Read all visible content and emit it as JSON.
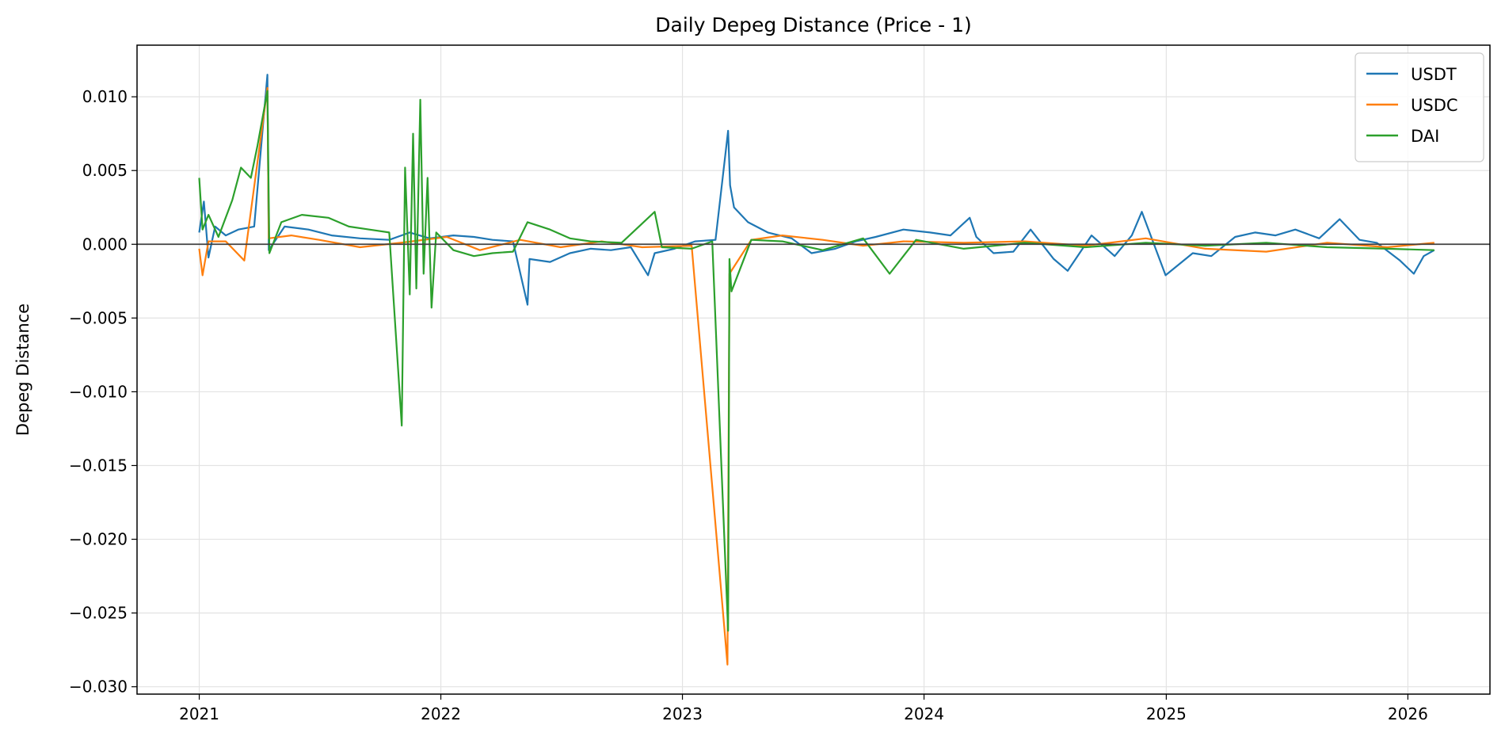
{
  "chart_data": {
    "type": "line",
    "title": "Daily Depeg Distance (Price - 1)",
    "xlabel": "",
    "ylabel": "Depeg Distance",
    "x_range": [
      "2020-09-29",
      "2026-05-05"
    ],
    "ylim": [
      -0.0305,
      0.0135
    ],
    "x_ticks": [
      {
        "date": "2021-01-01",
        "label": "2021"
      },
      {
        "date": "2022-01-01",
        "label": "2022"
      },
      {
        "date": "2023-01-01",
        "label": "2023"
      },
      {
        "date": "2024-01-01",
        "label": "2024"
      },
      {
        "date": "2025-01-01",
        "label": "2025"
      },
      {
        "date": "2026-01-01",
        "label": "2026"
      }
    ],
    "y_ticks": [
      {
        "value": 0.01,
        "label": "0.010"
      },
      {
        "value": 0.005,
        "label": "0.005"
      },
      {
        "value": 0.0,
        "label": "0.000"
      },
      {
        "value": -0.005,
        "label": "−0.005"
      },
      {
        "value": -0.01,
        "label": "−0.010"
      },
      {
        "value": -0.015,
        "label": "−0.015"
      },
      {
        "value": -0.02,
        "label": "−0.020"
      },
      {
        "value": -0.025,
        "label": "−0.025"
      },
      {
        "value": -0.03,
        "label": "−0.030"
      }
    ],
    "reference_line": {
      "y": 0,
      "color": "#404040"
    },
    "grid": true,
    "legend_position": "top-right",
    "series": [
      {
        "name": "USDT",
        "color": "#1f77b4",
        "points": [
          [
            "2021-01-01",
            0.0008
          ],
          [
            "2021-01-08",
            0.0029
          ],
          [
            "2021-01-15",
            -0.0009
          ],
          [
            "2021-01-25",
            0.0012
          ],
          [
            "2021-02-10",
            0.0006
          ],
          [
            "2021-03-01",
            0.001
          ],
          [
            "2021-03-25",
            0.0012
          ],
          [
            "2021-04-14",
            0.0115
          ],
          [
            "2021-04-16",
            -0.0004
          ],
          [
            "2021-05-10",
            0.0012
          ],
          [
            "2021-06-15",
            0.001
          ],
          [
            "2021-07-20",
            0.0006
          ],
          [
            "2021-09-01",
            0.0004
          ],
          [
            "2021-10-15",
            0.0003
          ],
          [
            "2021-11-15",
            0.0008
          ],
          [
            "2021-12-15",
            0.0004
          ],
          [
            "2022-01-20",
            0.0006
          ],
          [
            "2022-02-20",
            0.0005
          ],
          [
            "2022-03-20",
            0.0003
          ],
          [
            "2022-04-20",
            0.0002
          ],
          [
            "2022-05-12",
            -0.0041
          ],
          [
            "2022-05-15",
            -0.001
          ],
          [
            "2022-06-15",
            -0.0012
          ],
          [
            "2022-07-15",
            -0.0006
          ],
          [
            "2022-08-15",
            -0.0003
          ],
          [
            "2022-09-15",
            -0.0004
          ],
          [
            "2022-10-15",
            -0.0002
          ],
          [
            "2022-11-10",
            -0.0021
          ],
          [
            "2022-11-20",
            -0.0006
          ],
          [
            "2022-12-20",
            -0.0003
          ],
          [
            "2023-01-20",
            0.0002
          ],
          [
            "2023-02-20",
            0.0003
          ],
          [
            "2023-03-11",
            0.0077
          ],
          [
            "2023-03-14",
            0.004
          ],
          [
            "2023-03-20",
            0.0025
          ],
          [
            "2023-04-10",
            0.0015
          ],
          [
            "2023-05-10",
            0.0008
          ],
          [
            "2023-06-15",
            0.0004
          ],
          [
            "2023-07-15",
            -0.0006
          ],
          [
            "2023-08-20",
            -0.0003
          ],
          [
            "2023-09-20",
            0.0002
          ],
          [
            "2023-10-20",
            0.0005
          ],
          [
            "2023-12-01",
            0.001
          ],
          [
            "2024-01-10",
            0.0008
          ],
          [
            "2024-02-10",
            0.0006
          ],
          [
            "2024-03-10",
            0.0018
          ],
          [
            "2024-03-20",
            0.0005
          ],
          [
            "2024-04-15",
            -0.0006
          ],
          [
            "2024-05-15",
            -0.0005
          ],
          [
            "2024-06-10",
            0.001
          ],
          [
            "2024-07-15",
            -0.001
          ],
          [
            "2024-08-05",
            -0.0018
          ],
          [
            "2024-09-10",
            0.0006
          ],
          [
            "2024-10-15",
            -0.0008
          ],
          [
            "2024-11-10",
            0.0006
          ],
          [
            "2024-11-25",
            0.0022
          ],
          [
            "2024-12-10",
            0.0004
          ],
          [
            "2024-12-31",
            -0.0021
          ],
          [
            "2025-02-10",
            -0.0006
          ],
          [
            "2025-03-10",
            -0.0008
          ],
          [
            "2025-04-15",
            0.0005
          ],
          [
            "2025-05-15",
            0.0008
          ],
          [
            "2025-06-15",
            0.0006
          ],
          [
            "2025-07-15",
            0.001
          ],
          [
            "2025-08-20",
            0.0004
          ],
          [
            "2025-09-20",
            0.0017
          ],
          [
            "2025-10-20",
            0.0003
          ],
          [
            "2025-11-15",
            0.0001
          ],
          [
            "2025-12-20",
            -0.0011
          ],
          [
            "2026-01-10",
            -0.002
          ],
          [
            "2026-01-25",
            -0.0008
          ],
          [
            "2026-02-10",
            -0.0004
          ]
        ]
      },
      {
        "name": "USDC",
        "color": "#ff7f0e",
        "points": [
          [
            "2021-01-01",
            -0.0003
          ],
          [
            "2021-01-06",
            -0.0021
          ],
          [
            "2021-01-15",
            0.0002
          ],
          [
            "2021-02-10",
            0.0002
          ],
          [
            "2021-03-10",
            -0.0011
          ],
          [
            "2021-04-14",
            0.0106
          ],
          [
            "2021-04-16",
            0.0004
          ],
          [
            "2021-05-20",
            0.0006
          ],
          [
            "2021-07-01",
            0.0003
          ],
          [
            "2021-09-01",
            -0.0002
          ],
          [
            "2021-11-01",
            0.0001
          ],
          [
            "2022-01-10",
            0.0005
          ],
          [
            "2022-03-01",
            -0.0004
          ],
          [
            "2022-05-01",
            0.0003
          ],
          [
            "2022-07-01",
            -0.0002
          ],
          [
            "2022-09-01",
            0.0002
          ],
          [
            "2022-11-01",
            -0.0002
          ],
          [
            "2023-01-15",
            -0.0001
          ],
          [
            "2023-03-10",
            -0.0285
          ],
          [
            "2023-03-13",
            -0.002
          ],
          [
            "2023-04-15",
            0.0003
          ],
          [
            "2023-06-01",
            0.0006
          ],
          [
            "2023-08-01",
            0.0003
          ],
          [
            "2023-10-01",
            -0.0001
          ],
          [
            "2023-12-01",
            0.0002
          ],
          [
            "2024-03-01",
            0.0001
          ],
          [
            "2024-06-01",
            0.0002
          ],
          [
            "2024-09-01",
            -0.0001
          ],
          [
            "2024-12-01",
            0.0004
          ],
          [
            "2025-03-01",
            -0.0003
          ],
          [
            "2025-06-01",
            -0.0005
          ],
          [
            "2025-09-01",
            0.0001
          ],
          [
            "2025-12-01",
            -0.0002
          ],
          [
            "2026-02-10",
            0.0001
          ]
        ]
      },
      {
        "name": "DAI",
        "color": "#2ca02c",
        "points": [
          [
            "2021-01-01",
            0.0045
          ],
          [
            "2021-01-06",
            0.001
          ],
          [
            "2021-01-15",
            0.002
          ],
          [
            "2021-01-30",
            0.0005
          ],
          [
            "2021-02-20",
            0.003
          ],
          [
            "2021-03-05",
            0.0052
          ],
          [
            "2021-03-20",
            0.0045
          ],
          [
            "2021-03-30",
            0.0067
          ],
          [
            "2021-04-14",
            0.0104
          ],
          [
            "2021-04-17",
            -0.0006
          ],
          [
            "2021-05-05",
            0.0015
          ],
          [
            "2021-06-05",
            0.002
          ],
          [
            "2021-07-15",
            0.0018
          ],
          [
            "2021-08-15",
            0.0012
          ],
          [
            "2021-09-15",
            0.001
          ],
          [
            "2021-10-15",
            0.0008
          ],
          [
            "2021-11-03",
            -0.0123
          ],
          [
            "2021-11-08",
            0.0052
          ],
          [
            "2021-11-15",
            -0.0034
          ],
          [
            "2021-11-20",
            0.0075
          ],
          [
            "2021-11-25",
            -0.003
          ],
          [
            "2021-12-01",
            0.0098
          ],
          [
            "2021-12-06",
            -0.002
          ],
          [
            "2021-12-12",
            0.0045
          ],
          [
            "2021-12-18",
            -0.0043
          ],
          [
            "2021-12-25",
            0.0008
          ],
          [
            "2022-01-20",
            -0.0004
          ],
          [
            "2022-02-20",
            -0.0008
          ],
          [
            "2022-03-20",
            -0.0006
          ],
          [
            "2022-04-20",
            -0.0005
          ],
          [
            "2022-05-12",
            0.0015
          ],
          [
            "2022-06-15",
            0.001
          ],
          [
            "2022-07-15",
            0.0004
          ],
          [
            "2022-08-15",
            0.0002
          ],
          [
            "2022-10-01",
            0.0001
          ],
          [
            "2022-11-20",
            0.0022
          ],
          [
            "2022-12-01",
            -0.0002
          ],
          [
            "2023-01-15",
            -0.0003
          ],
          [
            "2023-02-15",
            0.0002
          ],
          [
            "2023-03-11",
            -0.0262
          ],
          [
            "2023-03-13",
            -0.001
          ],
          [
            "2023-03-16",
            -0.0032
          ],
          [
            "2023-04-15",
            0.0003
          ],
          [
            "2023-06-01",
            0.0002
          ],
          [
            "2023-08-01",
            -0.0004
          ],
          [
            "2023-10-01",
            0.0004
          ],
          [
            "2023-11-10",
            -0.002
          ],
          [
            "2023-12-20",
            0.0003
          ],
          [
            "2024-03-01",
            -0.0003
          ],
          [
            "2024-06-01",
            0.0001
          ],
          [
            "2024-09-01",
            -0.0002
          ],
          [
            "2024-12-01",
            0.0001
          ],
          [
            "2025-03-01",
            -0.0001
          ],
          [
            "2025-06-01",
            0.0001
          ],
          [
            "2025-09-01",
            -0.0002
          ],
          [
            "2025-12-01",
            -0.0003
          ],
          [
            "2026-02-10",
            -0.0004
          ]
        ]
      }
    ]
  }
}
